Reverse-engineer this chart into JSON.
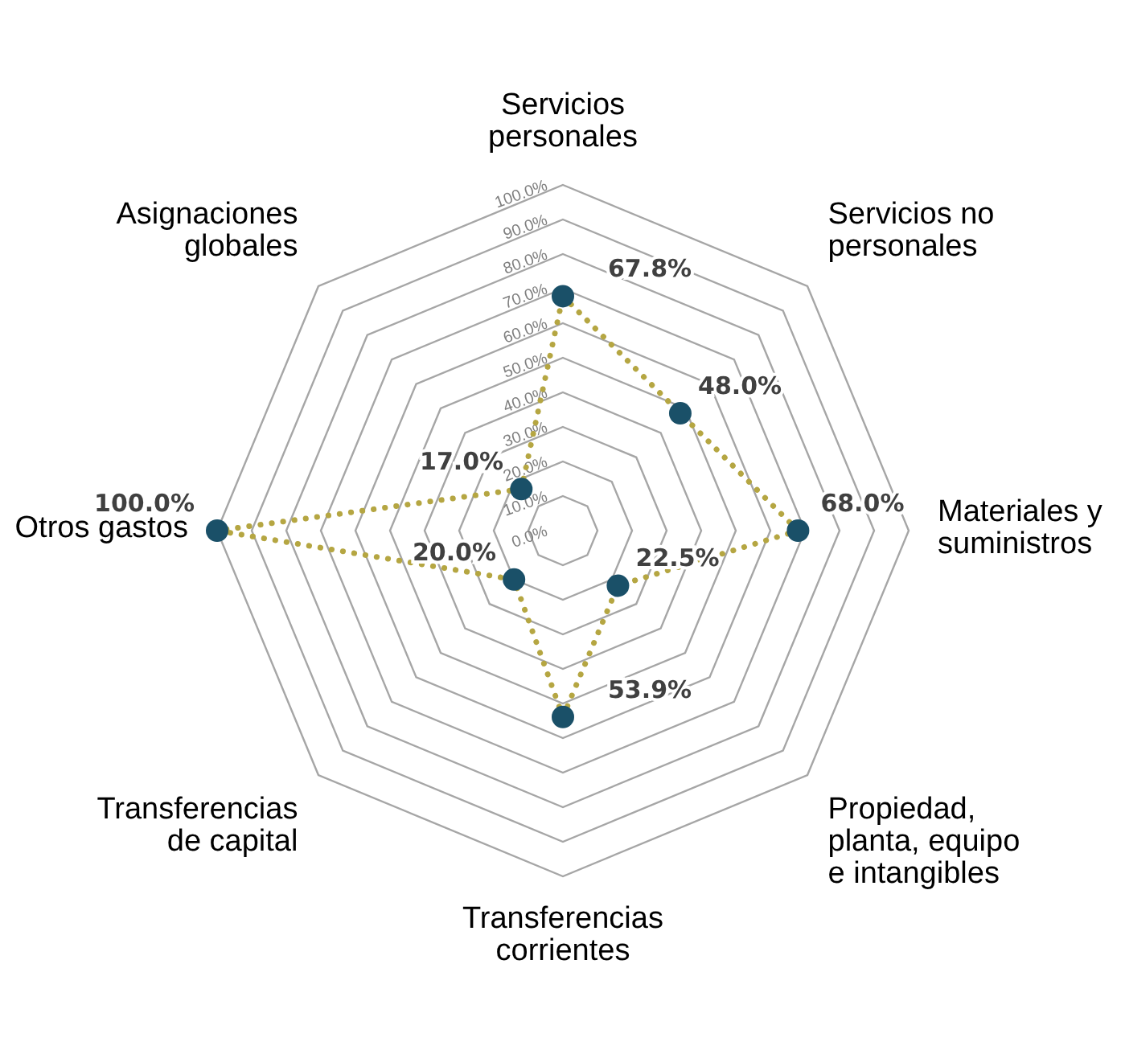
{
  "chart_data": {
    "type": "radar",
    "categories": [
      "Servicios personales",
      "Servicios no personales",
      "Materiales y suministros",
      "Propiedad, planta, equipo e intangibles",
      "Transferencias corrientes",
      "Transferencias de capital",
      "Otros gastos",
      "Asignaciones globales"
    ],
    "series": [
      {
        "color": "#b5a642",
        "colors": [
          "#1a5068",
          "#1a5068",
          "#1a5068",
          "#1a5068",
          "#1a5068",
          "#1a5068",
          "#1a5068",
          "#1a5068"
        ],
        "values": [
          67.8,
          48.0,
          68.0,
          22.5,
          53.9,
          20.0,
          100.0,
          17.0
        ]
      }
    ],
    "ylim": [
      0,
      100
    ],
    "yticks": [
      {
        "value": 0,
        "label": "0.0%"
      },
      {
        "value": 10,
        "label": "10.0%"
      },
      {
        "value": 20,
        "label": "20.0%"
      },
      {
        "value": 30,
        "label": "30.0%"
      },
      {
        "value": 40,
        "label": "40.0%"
      },
      {
        "value": 50,
        "label": "50.0%"
      },
      {
        "value": 60,
        "label": "60.0%"
      },
      {
        "value": 70,
        "label": "70.0%"
      },
      {
        "value": 80,
        "label": "80.0%"
      },
      {
        "value": 90,
        "label": "90.0%"
      },
      {
        "value": 100,
        "label": "100.0%"
      }
    ],
    "value_labels": [
      "67.8%",
      "48.0%",
      "68.0%",
      "22.5%",
      "53.9%",
      "20.0%",
      "100.0%",
      "17.0%"
    ],
    "line_style": "dotted",
    "marker": "circle",
    "grid": true
  }
}
